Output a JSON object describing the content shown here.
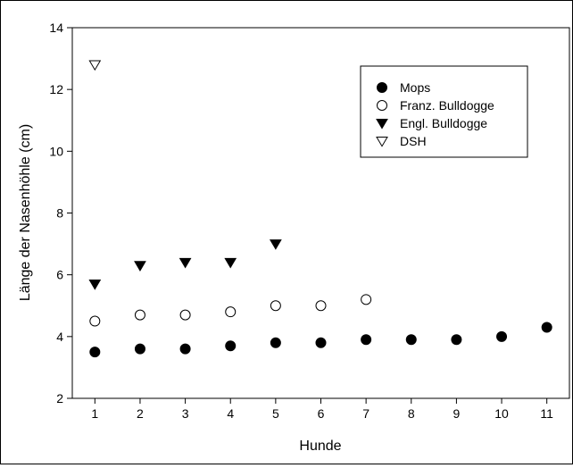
{
  "chart_data": {
    "type": "scatter",
    "title": "",
    "xlabel": "Hunde",
    "ylabel": "Länge der Nasenhöhle (cm)",
    "xlim": [
      0.5,
      11.5
    ],
    "ylim": [
      2,
      14
    ],
    "xticks": [
      1,
      2,
      3,
      4,
      5,
      6,
      7,
      8,
      9,
      10,
      11
    ],
    "yticks": [
      2,
      4,
      6,
      8,
      10,
      12,
      14
    ],
    "grid": false,
    "legend_position": "top-right",
    "series": [
      {
        "name": "Mops",
        "marker": "filled-circle",
        "color": "#000000",
        "x": [
          1,
          2,
          3,
          4,
          5,
          6,
          7,
          8,
          9,
          10,
          11
        ],
        "y": [
          3.5,
          3.6,
          3.6,
          3.7,
          3.8,
          3.8,
          3.9,
          3.9,
          3.9,
          4.0,
          4.3
        ]
      },
      {
        "name": "Franz. Bulldogge",
        "marker": "open-circle",
        "color": "#000000",
        "x": [
          1,
          2,
          3,
          4,
          5,
          6,
          7
        ],
        "y": [
          4.5,
          4.7,
          4.7,
          4.8,
          5.0,
          5.0,
          5.2
        ]
      },
      {
        "name": "Engl. Bulldogge",
        "marker": "filled-triangle-down",
        "color": "#000000",
        "x": [
          1,
          2,
          3,
          4,
          5
        ],
        "y": [
          5.7,
          6.3,
          6.4,
          6.4,
          7.0
        ]
      },
      {
        "name": "DSH",
        "marker": "open-triangle-down",
        "color": "#000000",
        "x": [
          1
        ],
        "y": [
          12.8
        ]
      }
    ]
  }
}
